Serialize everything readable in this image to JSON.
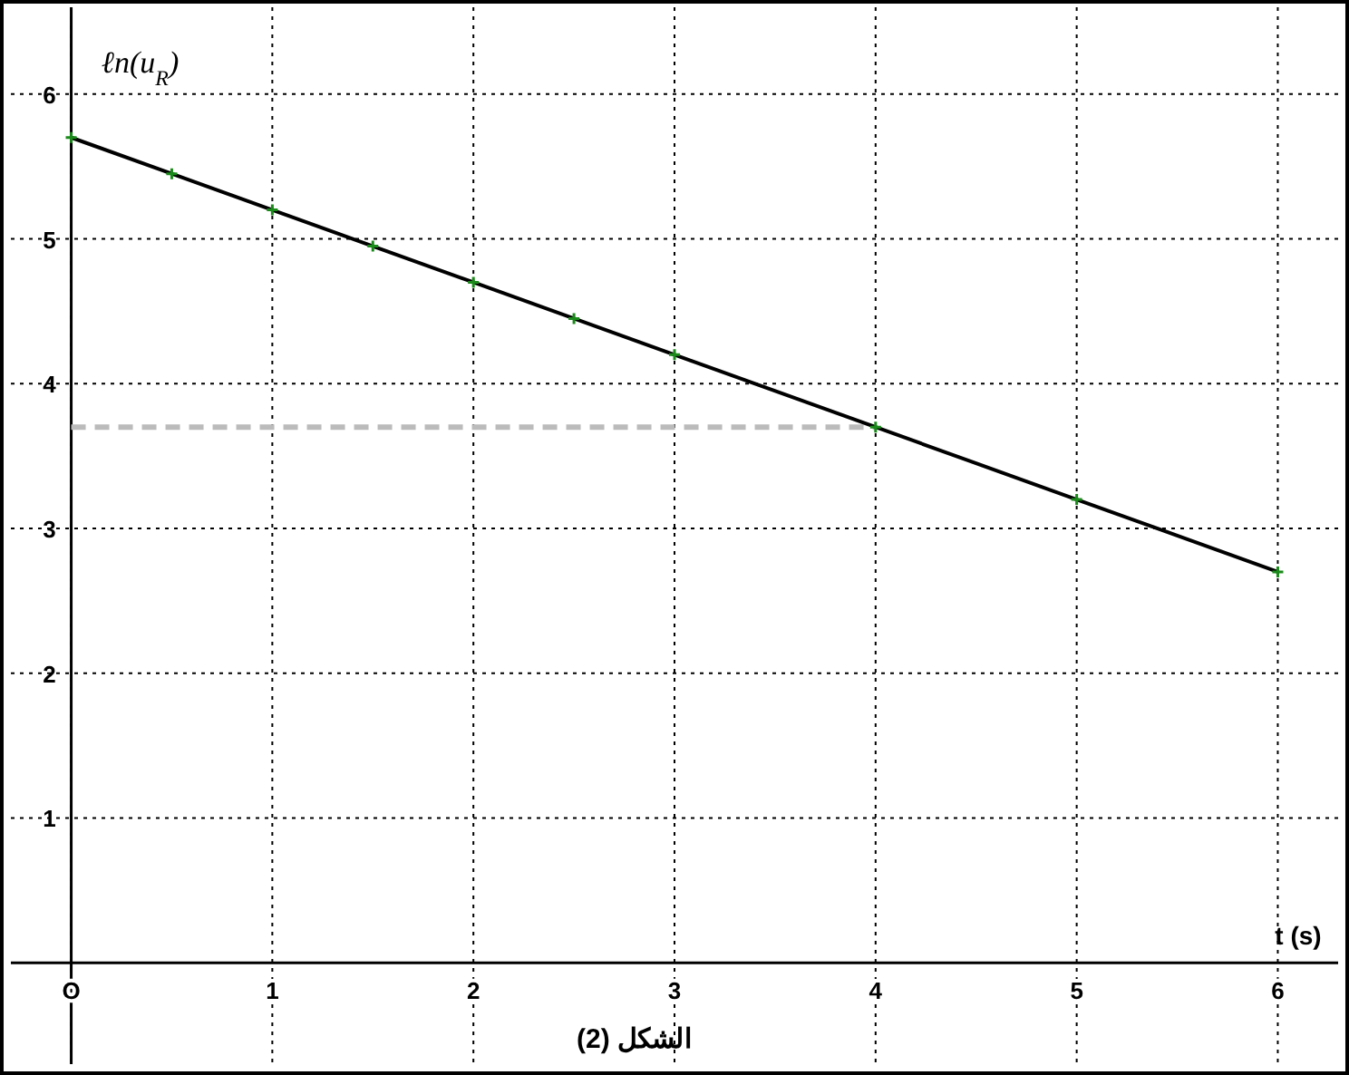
{
  "chart_data": {
    "type": "line",
    "xlabel": "t (s)",
    "ylabel": "ℓn(u$_{R}$)",
    "x": [
      0,
      0.5,
      1,
      1.5,
      2,
      2.5,
      3,
      4,
      5,
      6
    ],
    "series": [
      {
        "color": "#000000",
        "values": [
          5.7,
          5.45,
          5.2,
          4.95,
          4.7,
          4.45,
          4.2,
          3.7,
          3.2,
          2.7
        ]
      }
    ],
    "xlim": [
      -0.3,
      6.3
    ],
    "ylim": [
      -0.7,
      6.6
    ],
    "xticks": [
      {
        "value": 0,
        "label": "O"
      },
      1,
      2,
      3,
      4,
      5,
      6
    ],
    "yticks": [
      1,
      2,
      3,
      4,
      5,
      6
    ],
    "grid": true,
    "marker": "cross",
    "line_style": "solid",
    "ref_lines": [
      {
        "axis": "y",
        "value": 3.7,
        "color": "#bbbbbb",
        "line_style": "dashed"
      }
    ],
    "annotations": [
      "الشكل (2)"
    ]
  }
}
